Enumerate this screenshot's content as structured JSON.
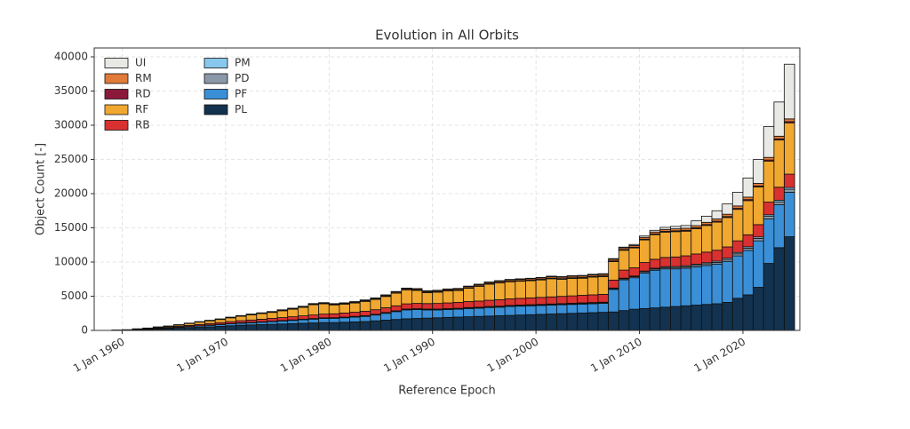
{
  "chart_data": {
    "type": "stacked-bar",
    "title": "Evolution in All Orbits",
    "x_label": "Reference Epoch",
    "y_label": "Object Count [-]",
    "x": [
      1959,
      1960,
      1961,
      1962,
      1963,
      1964,
      1965,
      1966,
      1967,
      1968,
      1969,
      1970,
      1971,
      1972,
      1973,
      1974,
      1975,
      1976,
      1977,
      1978,
      1979,
      1980,
      1981,
      1982,
      1983,
      1984,
      1985,
      1986,
      1987,
      1988,
      1989,
      1990,
      1991,
      1992,
      1993,
      1994,
      1995,
      1996,
      1997,
      1998,
      1999,
      2000,
      2001,
      2002,
      2003,
      2004,
      2005,
      2006,
      2007,
      2008,
      2009,
      2010,
      2011,
      2012,
      2013,
      2014,
      2015,
      2016,
      2017,
      2018,
      2019,
      2020,
      2021,
      2022,
      2023,
      2024
    ],
    "series": [
      {
        "name": "PL",
        "color": "#13324f",
        "values": [
          20,
          40,
          80,
          120,
          180,
          230,
          300,
          380,
          450,
          520,
          600,
          680,
          750,
          800,
          850,
          900,
          950,
          1000,
          1050,
          1100,
          1150,
          1150,
          1200,
          1250,
          1300,
          1400,
          1500,
          1600,
          1700,
          1750,
          1800,
          1850,
          1900,
          1950,
          2000,
          2050,
          2100,
          2150,
          2200,
          2250,
          2300,
          2350,
          2400,
          2450,
          2500,
          2550,
          2600,
          2650,
          2700,
          2900,
          3100,
          3200,
          3300,
          3400,
          3500,
          3600,
          3700,
          3800,
          3900,
          4100,
          4700,
          5200,
          6300,
          9800,
          12100,
          13700
        ]
      },
      {
        "name": "PF",
        "color": "#3a8fd6",
        "values": [
          10,
          20,
          40,
          60,
          80,
          100,
          130,
          160,
          190,
          220,
          250,
          280,
          300,
          320,
          350,
          380,
          420,
          460,
          500,
          550,
          600,
          620,
          650,
          700,
          750,
          850,
          1000,
          1150,
          1300,
          1300,
          1200,
          1150,
          1150,
          1150,
          1200,
          1200,
          1250,
          1250,
          1300,
          1300,
          1300,
          1300,
          1300,
          1300,
          1300,
          1300,
          1300,
          1300,
          3300,
          4500,
          4600,
          5200,
          5500,
          5600,
          5500,
          5500,
          5600,
          5700,
          5800,
          6000,
          6200,
          6500,
          6800,
          6500,
          6300,
          6500
        ]
      },
      {
        "name": "PD",
        "color": "#8a98a8",
        "values": [
          0,
          0,
          5,
          10,
          10,
          15,
          20,
          20,
          25,
          30,
          30,
          35,
          40,
          40,
          45,
          50,
          50,
          55,
          60,
          60,
          60,
          60,
          65,
          65,
          70,
          70,
          75,
          75,
          80,
          80,
          80,
          80,
          85,
          85,
          90,
          90,
          90,
          95,
          95,
          100,
          100,
          100,
          100,
          105,
          105,
          110,
          110,
          110,
          120,
          150,
          160,
          170,
          180,
          190,
          200,
          210,
          220,
          230,
          250,
          270,
          300,
          320,
          350,
          380,
          400,
          450
        ]
      },
      {
        "name": "PM",
        "color": "#88c8ec",
        "values": [
          0,
          0,
          0,
          5,
          5,
          5,
          10,
          10,
          10,
          15,
          15,
          15,
          20,
          20,
          20,
          25,
          25,
          25,
          30,
          30,
          30,
          30,
          35,
          35,
          35,
          40,
          40,
          40,
          45,
          45,
          45,
          45,
          50,
          50,
          50,
          55,
          55,
          55,
          60,
          60,
          60,
          60,
          65,
          65,
          65,
          70,
          70,
          70,
          80,
          90,
          100,
          110,
          120,
          130,
          140,
          150,
          160,
          170,
          180,
          190,
          200,
          210,
          220,
          230,
          240,
          250
        ]
      },
      {
        "name": "RB",
        "color": "#d93030",
        "values": [
          10,
          20,
          40,
          60,
          80,
          100,
          130,
          160,
          190,
          220,
          250,
          280,
          310,
          340,
          370,
          400,
          430,
          460,
          490,
          520,
          550,
          570,
          590,
          610,
          640,
          670,
          700,
          730,
          760,
          780,
          800,
          820,
          840,
          860,
          880,
          900,
          920,
          940,
          960,
          980,
          1000,
          1020,
          1040,
          1060,
          1080,
          1100,
          1120,
          1140,
          1160,
          1180,
          1200,
          1250,
          1300,
          1350,
          1400,
          1450,
          1500,
          1550,
          1600,
          1650,
          1700,
          1750,
          1800,
          1850,
          1900,
          1950
        ]
      },
      {
        "name": "RF",
        "color": "#f0a830",
        "values": [
          10,
          30,
          60,
          80,
          120,
          150,
          200,
          280,
          350,
          400,
          450,
          550,
          650,
          750,
          820,
          880,
          1000,
          1100,
          1250,
          1500,
          1500,
          1300,
          1300,
          1350,
          1450,
          1500,
          1650,
          1850,
          2050,
          1900,
          1600,
          1650,
          1750,
          1750,
          1950,
          2150,
          2350,
          2450,
          2500,
          2500,
          2500,
          2550,
          2650,
          2500,
          2550,
          2500,
          2600,
          2600,
          2700,
          2900,
          2900,
          3300,
          3600,
          3700,
          3700,
          3600,
          3700,
          3900,
          4100,
          4300,
          4600,
          5000,
          5500,
          6000,
          6900,
          7500
        ]
      },
      {
        "name": "RD",
        "color": "#8b1a3a",
        "values": [
          0,
          0,
          0,
          5,
          5,
          10,
          10,
          15,
          15,
          20,
          20,
          25,
          25,
          30,
          30,
          35,
          35,
          40,
          40,
          45,
          45,
          50,
          50,
          55,
          55,
          60,
          60,
          65,
          65,
          70,
          70,
          70,
          75,
          75,
          80,
          80,
          80,
          85,
          85,
          90,
          90,
          90,
          95,
          95,
          100,
          100,
          100,
          105,
          105,
          110,
          110,
          115,
          120,
          120,
          125,
          130,
          130,
          135,
          140,
          140,
          150,
          150,
          160,
          160,
          170,
          180
        ]
      },
      {
        "name": "RM",
        "color": "#e07b39",
        "values": [
          0,
          0,
          5,
          10,
          15,
          20,
          25,
          30,
          35,
          40,
          45,
          50,
          55,
          60,
          65,
          70,
          75,
          80,
          85,
          90,
          95,
          100,
          105,
          110,
          115,
          120,
          125,
          130,
          135,
          140,
          145,
          150,
          155,
          160,
          165,
          170,
          175,
          180,
          185,
          190,
          195,
          200,
          205,
          210,
          215,
          220,
          225,
          230,
          235,
          240,
          250,
          260,
          270,
          280,
          290,
          300,
          310,
          320,
          330,
          340,
          350,
          360,
          370,
          380,
          390,
          400
        ]
      },
      {
        "name": "UI",
        "color": "#e8e8e5",
        "values": [
          0,
          0,
          0,
          0,
          5,
          5,
          10,
          10,
          15,
          15,
          20,
          20,
          20,
          25,
          25,
          25,
          30,
          30,
          30,
          35,
          35,
          40,
          40,
          40,
          45,
          45,
          50,
          50,
          55,
          55,
          60,
          60,
          60,
          65,
          65,
          70,
          70,
          70,
          75,
          75,
          80,
          80,
          80,
          85,
          85,
          90,
          90,
          90,
          100,
          110,
          150,
          200,
          250,
          300,
          350,
          400,
          700,
          900,
          1200,
          1500,
          2000,
          2800,
          3500,
          4500,
          5000,
          8000
        ]
      }
    ],
    "xlim": [
      1957.3,
      2025.5
    ],
    "xticks": [
      {
        "value": 1960,
        "label": "1 Jan 1960"
      },
      {
        "value": 1970,
        "label": "1 Jan 1970"
      },
      {
        "value": 1980,
        "label": "1 Jan 1980"
      },
      {
        "value": 1990,
        "label": "1 Jan 1990"
      },
      {
        "value": 2000,
        "label": "1 Jan 2000"
      },
      {
        "value": 2010,
        "label": "1 Jan 2010"
      },
      {
        "value": 2020,
        "label": "1 Jan 2020"
      }
    ],
    "ylim": [
      0,
      41300
    ],
    "yticks": [
      0,
      5000,
      10000,
      15000,
      20000,
      25000,
      30000,
      35000,
      40000
    ],
    "grid": true,
    "legend": "upper left"
  }
}
